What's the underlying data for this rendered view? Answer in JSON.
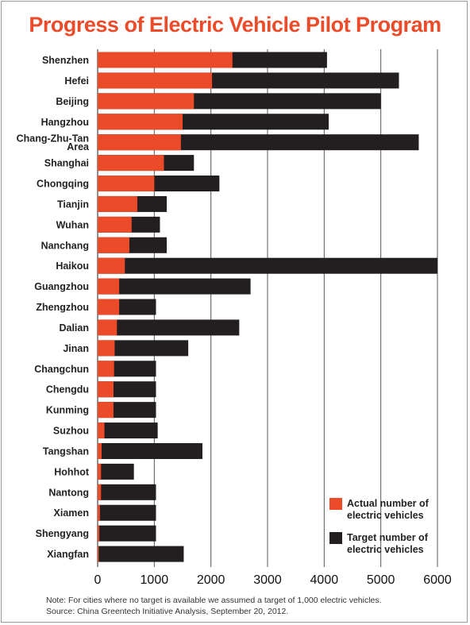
{
  "chart_data": {
    "type": "bar",
    "orientation": "horizontal",
    "stacked": false,
    "title": "Progress of Electric Vehicle Pilot Program",
    "categories": [
      "Shenzhen",
      "Hefei",
      "Beijing",
      "Hangzhou",
      "Chang-Zhu-Tan Area",
      "Shanghai",
      "Chongqing",
      "Tianjin",
      "Wuhan",
      "Nanchang",
      "Haikou",
      "Guangzhou",
      "Zhengzhou",
      "Dalian",
      "Jinan",
      "Changchun",
      "Chengdu",
      "Kunming",
      "Suzhou",
      "Tangshan",
      "Hohhot",
      "Nantong",
      "Xiamen",
      "Shengyang",
      "Xiangfan"
    ],
    "series": [
      {
        "name": "Target number of electric vehicles",
        "color": "#231f20",
        "values": [
          4050,
          5320,
          5000,
          4080,
          5670,
          1700,
          2150,
          1220,
          1100,
          1220,
          6000,
          2700,
          1030,
          2500,
          1600,
          1030,
          1030,
          1030,
          1060,
          1850,
          640,
          1030,
          1030,
          1030,
          1520
        ]
      },
      {
        "name": "Actual number of electric vehicles",
        "color": "#ec4b2a",
        "values": [
          2380,
          2020,
          1700,
          1500,
          1470,
          1170,
          1000,
          700,
          600,
          560,
          480,
          380,
          380,
          340,
          300,
          290,
          280,
          280,
          120,
          70,
          60,
          60,
          40,
          30,
          20
        ]
      }
    ],
    "xlim": [
      0,
      6000
    ],
    "xticks": [
      0,
      1000,
      2000,
      3000,
      4000,
      5000,
      6000
    ],
    "grid": "vertical",
    "legend": "bottom-right"
  },
  "legend": {
    "actual_label_line1": "Actual number of",
    "actual_label_line2": "electric vehicles",
    "target_label_line1": "Target number of",
    "target_label_line2": "electric vehicles"
  },
  "notes": {
    "note": "Note: For cities where no target is available we assumed a target of 1,000 electric vehicles.",
    "source": "Source: China Greentech Initiative Analysis, September 20, 2012."
  }
}
